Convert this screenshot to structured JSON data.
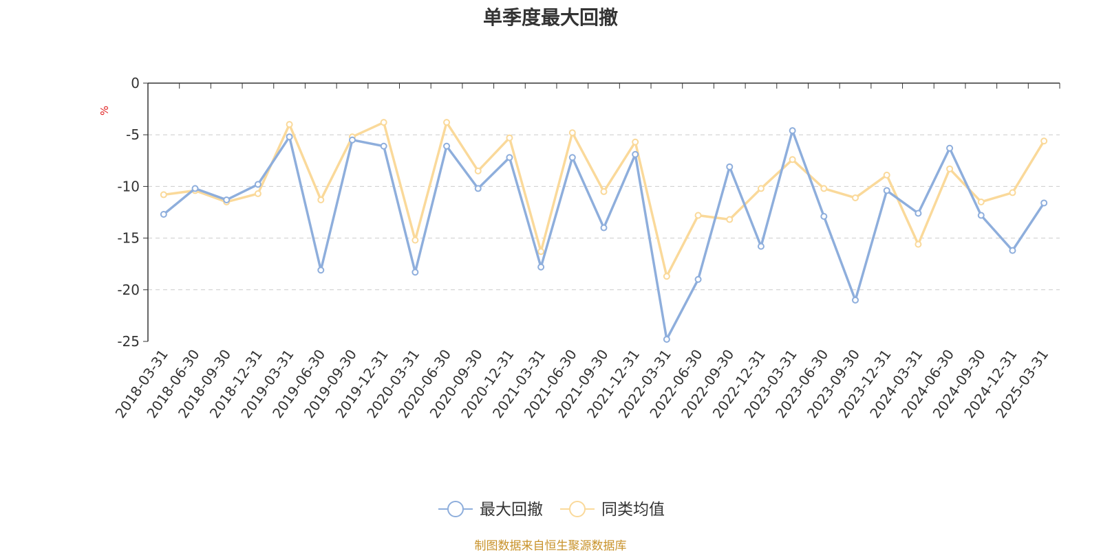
{
  "chart_data": {
    "type": "line",
    "title": "单季度最大回撤",
    "ylabel": "%",
    "ylim": [
      -25,
      0
    ],
    "yticks": [
      0,
      -5,
      -10,
      -15,
      -20,
      -25
    ],
    "grid": true,
    "legend_position": "bottom-center",
    "categories": [
      "2018-03-31",
      "2018-06-30",
      "2018-09-30",
      "2018-12-31",
      "2019-03-31",
      "2019-06-30",
      "2019-09-30",
      "2019-12-31",
      "2020-03-31",
      "2020-06-30",
      "2020-09-30",
      "2020-12-31",
      "2021-03-31",
      "2021-06-30",
      "2021-09-30",
      "2021-12-31",
      "2022-03-31",
      "2022-06-30",
      "2022-09-30",
      "2022-12-31",
      "2023-03-31",
      "2023-06-30",
      "2023-09-30",
      "2023-12-31",
      "2024-03-31",
      "2024-06-30",
      "2024-09-30",
      "2024-12-31",
      "2025-03-31"
    ],
    "series": [
      {
        "name": "最大回撤",
        "color": "#8eaedc",
        "values": [
          -12.7,
          -10.2,
          -11.3,
          -9.8,
          -5.2,
          -18.1,
          -5.5,
          -6.1,
          -18.3,
          -6.1,
          -10.2,
          -7.2,
          -17.8,
          -7.2,
          -14.0,
          -6.9,
          -24.8,
          -19.0,
          -8.1,
          -15.8,
          -4.6,
          -12.9,
          -21.0,
          -10.4,
          -12.6,
          -6.3,
          -12.8,
          -16.2,
          -11.6
        ]
      },
      {
        "name": "同类均值",
        "color": "#fad99a",
        "values": [
          -10.8,
          -10.4,
          -11.5,
          -10.7,
          -4.0,
          -11.3,
          -5.2,
          -3.8,
          -15.2,
          -3.8,
          -8.5,
          -5.3,
          -16.3,
          -4.8,
          -10.5,
          -5.7,
          -18.7,
          -12.8,
          -13.2,
          -10.2,
          -7.4,
          -10.2,
          -11.1,
          -8.9,
          -15.6,
          -8.3,
          -11.5,
          -10.6,
          -5.6
        ]
      }
    ]
  },
  "footer": {
    "source": "制图数据来自恒生聚源数据库"
  }
}
